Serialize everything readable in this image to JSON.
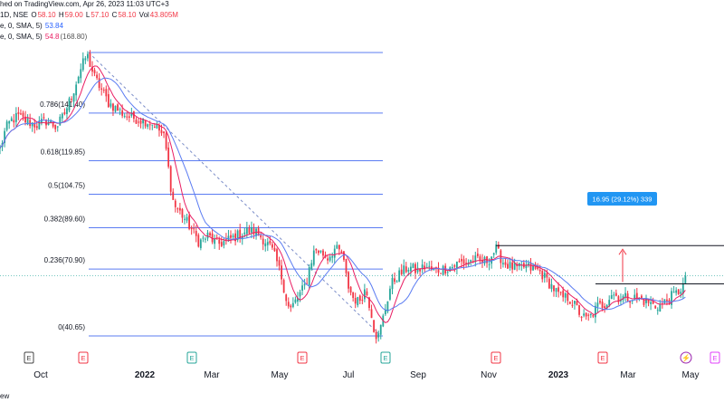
{
  "header": {
    "published": "hed on TradingView.com, Apr 26, 2023 11:03 UTC+3",
    "symbol_prefix": "1D, NSE",
    "o_label": "O",
    "o_val": "58.10",
    "h_label": "H",
    "h_val": "59.00",
    "l_label": "L",
    "l_val": "57.10",
    "c_label": "C",
    "c_val": "58.10",
    "vol_label": "Vol",
    "vol_val": "43.805M",
    "ma1_text": "e, 0, SMA, 5)",
    "ma1_val": "53.84",
    "ma2_text": "e, 0, SMA, 5)",
    "ma2_val": "54.8",
    "ma2_overlap": "(168.80)"
  },
  "footer": {
    "text": "ew"
  },
  "colors": {
    "up": "#26a69a",
    "down": "#f23645",
    "ma_fast": "#e91e63",
    "ma_slow": "#5b7cf2",
    "fib": "#5b7cf2",
    "measure": "#2196f3",
    "arrow": "#f23645"
  },
  "chart_data": {
    "type": "candlestick",
    "title": "",
    "interval": "1D",
    "exchange": "NSE",
    "ylim": [
      36,
      182
    ],
    "x_ticks": [
      "Oct",
      "2022",
      "Mar",
      "May",
      "Jul",
      "Sep",
      "Nov",
      "2023",
      "Mar",
      "May"
    ],
    "x_ticks_bold": [
      "2022",
      "2023"
    ],
    "fibonacci": {
      "levels": [
        {
          "ratio": "1",
          "price": 168.8,
          "label": ""
        },
        {
          "ratio": "0.786",
          "price": 141.4,
          "label": "0.786(141.40)"
        },
        {
          "ratio": "0.618",
          "price": 119.85,
          "label": "0.618(119.85)"
        },
        {
          "ratio": "0.5",
          "price": 104.75,
          "label": "0.5(104.75)"
        },
        {
          "ratio": "0.382",
          "price": 89.6,
          "label": "0.382(89.60)"
        },
        {
          "ratio": "0.236",
          "price": 70.9,
          "label": "0.236(70.90)"
        },
        {
          "ratio": "0",
          "price": 40.65,
          "label": "0(40.65)"
        }
      ]
    },
    "measure_label": "16.95 (29.12%) 339",
    "resistance_price": 81.5,
    "breakout_base_price": 64.2,
    "current_price": 67.9,
    "events": [
      {
        "type": "E",
        "color": "#444444"
      },
      {
        "type": "E",
        "color": "#f23645"
      },
      {
        "type": "E",
        "color": "#26a69a"
      },
      {
        "type": "E",
        "color": "#f23645"
      },
      {
        "type": "E",
        "color": "#26a69a"
      },
      {
        "type": "E",
        "color": "#f23645"
      },
      {
        "type": "E",
        "color": "#f23645"
      },
      {
        "type": "flash",
        "color": "#9c27b0"
      },
      {
        "type": "E",
        "color": "#e040fb"
      }
    ],
    "close_anchors": [
      [
        0,
        125
      ],
      [
        6,
        134
      ],
      [
        12,
        138
      ],
      [
        20,
        140
      ],
      [
        28,
        138
      ],
      [
        40,
        136
      ],
      [
        52,
        138
      ],
      [
        62,
        135
      ],
      [
        70,
        140
      ],
      [
        80,
        150
      ],
      [
        88,
        160
      ],
      [
        96,
        168
      ],
      [
        104,
        158
      ],
      [
        112,
        152
      ],
      [
        120,
        146
      ],
      [
        130,
        143
      ],
      [
        140,
        140
      ],
      [
        150,
        139
      ],
      [
        160,
        138
      ],
      [
        172,
        136
      ],
      [
        182,
        130
      ],
      [
        188,
        110
      ],
      [
        192,
        100
      ],
      [
        200,
        96
      ],
      [
        210,
        90
      ],
      [
        220,
        83
      ],
      [
        230,
        86
      ],
      [
        240,
        82
      ],
      [
        252,
        84
      ],
      [
        262,
        86
      ],
      [
        272,
        88
      ],
      [
        282,
        88
      ],
      [
        292,
        84
      ],
      [
        300,
        80
      ],
      [
        306,
        74
      ],
      [
        312,
        66
      ],
      [
        316,
        58
      ],
      [
        320,
        52
      ],
      [
        326,
        56
      ],
      [
        332,
        60
      ],
      [
        338,
        64
      ],
      [
        342,
        72
      ],
      [
        348,
        80
      ],
      [
        356,
        78
      ],
      [
        362,
        76
      ],
      [
        370,
        80
      ],
      [
        378,
        78
      ],
      [
        384,
        64
      ],
      [
        390,
        58
      ],
      [
        396,
        56
      ],
      [
        404,
        62
      ],
      [
        410,
        52
      ],
      [
        414,
        42
      ],
      [
        418,
        40
      ],
      [
        424,
        50
      ],
      [
        432,
        64
      ],
      [
        440,
        68
      ],
      [
        446,
        70
      ],
      [
        452,
        72
      ],
      [
        460,
        70
      ],
      [
        470,
        72
      ],
      [
        480,
        70
      ],
      [
        490,
        71
      ],
      [
        500,
        72
      ],
      [
        508,
        74
      ],
      [
        516,
        74
      ],
      [
        524,
        75
      ],
      [
        532,
        74
      ],
      [
        540,
        75
      ],
      [
        548,
        80
      ],
      [
        556,
        74
      ],
      [
        564,
        72
      ],
      [
        572,
        71
      ],
      [
        580,
        72
      ],
      [
        588,
        71
      ],
      [
        596,
        70
      ],
      [
        604,
        66
      ],
      [
        612,
        62
      ],
      [
        620,
        58
      ],
      [
        628,
        58
      ],
      [
        636,
        54
      ],
      [
        642,
        50
      ],
      [
        648,
        48
      ],
      [
        654,
        50
      ],
      [
        660,
        54
      ],
      [
        668,
        55
      ],
      [
        676,
        60
      ],
      [
        684,
        58
      ],
      [
        692,
        58
      ],
      [
        700,
        58
      ],
      [
        708,
        57
      ],
      [
        716,
        56
      ],
      [
        724,
        54
      ],
      [
        732,
        55
      ],
      [
        740,
        58
      ],
      [
        748,
        60
      ],
      [
        754,
        63
      ],
      [
        759,
        67
      ]
    ]
  }
}
